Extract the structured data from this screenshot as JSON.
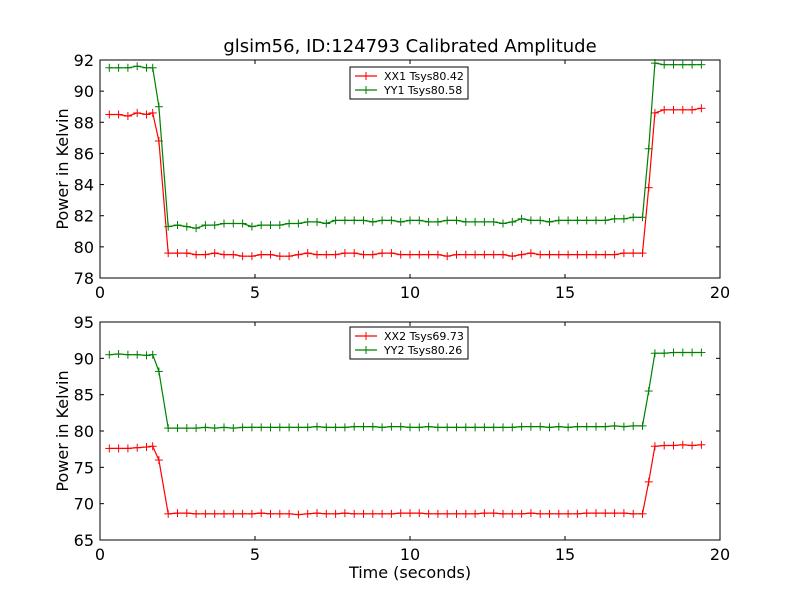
{
  "title": "glsim56, ID:124793 Calibrated Amplitude",
  "chart_data": [
    {
      "type": "line",
      "title": "glsim56, ID:124793 Calibrated Amplitude",
      "xlabel": "",
      "ylabel": "Power in Kelvin",
      "xlim": [
        0,
        20
      ],
      "ylim": [
        78,
        92
      ],
      "xticks": [
        0,
        5,
        10,
        15,
        20
      ],
      "yticks": [
        78,
        80,
        82,
        84,
        86,
        88,
        90,
        92
      ],
      "legend_position": "top-center",
      "x": [
        0.3,
        0.6,
        0.9,
        1.2,
        1.5,
        1.7,
        1.9,
        2.2,
        2.5,
        2.8,
        3.1,
        3.4,
        3.7,
        4.0,
        4.3,
        4.6,
        4.9,
        5.2,
        5.5,
        5.8,
        6.1,
        6.4,
        6.7,
        7.0,
        7.3,
        7.6,
        7.9,
        8.2,
        8.5,
        8.8,
        9.1,
        9.4,
        9.7,
        10.0,
        10.3,
        10.6,
        10.9,
        11.2,
        11.5,
        11.8,
        12.1,
        12.4,
        12.7,
        13.0,
        13.3,
        13.6,
        13.9,
        14.2,
        14.5,
        14.8,
        15.1,
        15.4,
        15.7,
        16.0,
        16.3,
        16.6,
        16.9,
        17.2,
        17.5,
        17.7,
        17.9,
        18.2,
        18.5,
        18.8,
        19.1,
        19.4
      ],
      "series": [
        {
          "name": "XX1 Tsys80.42",
          "color": "#ff0000",
          "values": [
            88.5,
            88.5,
            88.4,
            88.6,
            88.5,
            88.6,
            86.8,
            79.6,
            79.6,
            79.6,
            79.5,
            79.5,
            79.6,
            79.5,
            79.5,
            79.4,
            79.4,
            79.5,
            79.5,
            79.4,
            79.4,
            79.5,
            79.6,
            79.5,
            79.5,
            79.5,
            79.6,
            79.6,
            79.5,
            79.5,
            79.6,
            79.6,
            79.5,
            79.5,
            79.5,
            79.5,
            79.5,
            79.4,
            79.5,
            79.5,
            79.5,
            79.5,
            79.5,
            79.5,
            79.4,
            79.5,
            79.6,
            79.5,
            79.5,
            79.5,
            79.5,
            79.5,
            79.5,
            79.5,
            79.5,
            79.5,
            79.6,
            79.6,
            79.6,
            83.8,
            88.6,
            88.8,
            88.8,
            88.8,
            88.8,
            88.9
          ]
        },
        {
          "name": "YY1 Tsys80.58",
          "color": "#008000",
          "values": [
            91.5,
            91.5,
            91.5,
            91.6,
            91.5,
            91.5,
            89.0,
            81.3,
            81.4,
            81.3,
            81.2,
            81.4,
            81.4,
            81.5,
            81.5,
            81.5,
            81.3,
            81.4,
            81.4,
            81.4,
            81.5,
            81.5,
            81.6,
            81.6,
            81.5,
            81.7,
            81.7,
            81.7,
            81.7,
            81.6,
            81.7,
            81.7,
            81.6,
            81.7,
            81.7,
            81.6,
            81.6,
            81.7,
            81.7,
            81.6,
            81.6,
            81.6,
            81.6,
            81.5,
            81.6,
            81.8,
            81.7,
            81.7,
            81.6,
            81.7,
            81.7,
            81.7,
            81.7,
            81.7,
            81.7,
            81.8,
            81.8,
            81.9,
            81.9,
            86.3,
            91.8,
            91.7,
            91.7,
            91.7,
            91.7,
            91.7
          ]
        }
      ]
    },
    {
      "type": "line",
      "title": "",
      "xlabel": "Time (seconds)",
      "ylabel": "Power in Kelvin",
      "xlim": [
        0,
        20
      ],
      "ylim": [
        65,
        95
      ],
      "xticks": [
        0,
        5,
        10,
        15,
        20
      ],
      "yticks": [
        65,
        70,
        75,
        80,
        85,
        90,
        95
      ],
      "legend_position": "top-center",
      "x": [
        0.3,
        0.6,
        0.9,
        1.2,
        1.5,
        1.7,
        1.9,
        2.2,
        2.5,
        2.8,
        3.1,
        3.4,
        3.7,
        4.0,
        4.3,
        4.6,
        4.9,
        5.2,
        5.5,
        5.8,
        6.1,
        6.4,
        6.7,
        7.0,
        7.3,
        7.6,
        7.9,
        8.2,
        8.5,
        8.8,
        9.1,
        9.4,
        9.7,
        10.0,
        10.3,
        10.6,
        10.9,
        11.2,
        11.5,
        11.8,
        12.1,
        12.4,
        12.7,
        13.0,
        13.3,
        13.6,
        13.9,
        14.2,
        14.5,
        14.8,
        15.1,
        15.4,
        15.7,
        16.0,
        16.3,
        16.6,
        16.9,
        17.2,
        17.5,
        17.7,
        17.9,
        18.2,
        18.5,
        18.8,
        19.1,
        19.4
      ],
      "series": [
        {
          "name": "XX2 Tsys69.73",
          "color": "#ff0000",
          "values": [
            77.6,
            77.6,
            77.6,
            77.7,
            77.8,
            77.9,
            76.0,
            68.6,
            68.7,
            68.7,
            68.6,
            68.6,
            68.6,
            68.6,
            68.6,
            68.6,
            68.6,
            68.7,
            68.6,
            68.6,
            68.6,
            68.5,
            68.6,
            68.7,
            68.6,
            68.6,
            68.7,
            68.6,
            68.6,
            68.6,
            68.6,
            68.6,
            68.7,
            68.7,
            68.7,
            68.6,
            68.6,
            68.6,
            68.6,
            68.6,
            68.6,
            68.7,
            68.7,
            68.6,
            68.6,
            68.6,
            68.7,
            68.6,
            68.6,
            68.6,
            68.6,
            68.6,
            68.7,
            68.7,
            68.7,
            68.7,
            68.7,
            68.6,
            68.6,
            73.0,
            77.9,
            78.0,
            78.0,
            78.1,
            78.0,
            78.1
          ]
        },
        {
          "name": "YY2 Tsys80.26",
          "color": "#008000",
          "values": [
            90.5,
            90.6,
            90.5,
            90.5,
            90.4,
            90.5,
            88.2,
            80.4,
            80.4,
            80.4,
            80.4,
            80.5,
            80.4,
            80.5,
            80.4,
            80.5,
            80.5,
            80.5,
            80.5,
            80.5,
            80.5,
            80.5,
            80.5,
            80.6,
            80.5,
            80.5,
            80.5,
            80.6,
            80.6,
            80.6,
            80.5,
            80.6,
            80.6,
            80.5,
            80.5,
            80.6,
            80.5,
            80.5,
            80.5,
            80.5,
            80.5,
            80.5,
            80.5,
            80.5,
            80.5,
            80.6,
            80.6,
            80.6,
            80.5,
            80.6,
            80.5,
            80.6,
            80.6,
            80.6,
            80.6,
            80.7,
            80.6,
            80.7,
            80.7,
            85.5,
            90.7,
            90.7,
            90.8,
            90.8,
            90.8,
            90.8
          ]
        }
      ]
    }
  ]
}
